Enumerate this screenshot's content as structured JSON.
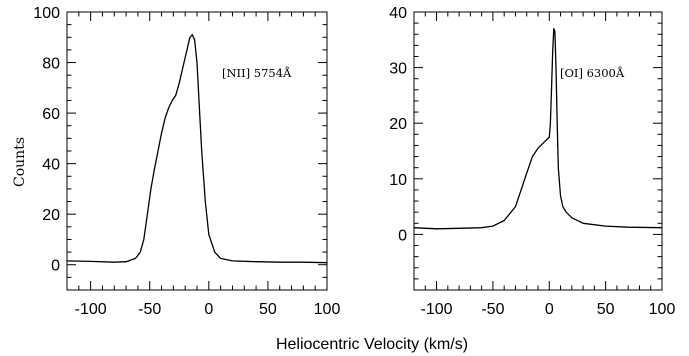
{
  "figure": {
    "xlabel": "Heliocentric Velocity (km/s)",
    "ylabel": "Counts"
  },
  "chart_data": [
    {
      "type": "line",
      "title": "",
      "annotation": "[NII] 5754Å",
      "xlabel": "Heliocentric Velocity (km/s)",
      "ylabel": "Counts",
      "xlim": [
        -120,
        100
      ],
      "ylim": [
        -10,
        100
      ],
      "x_ticks": [
        -100,
        -50,
        0,
        50,
        100
      ],
      "x_tick_labels": [
        "-100",
        "-50",
        "0",
        "50",
        "100"
      ],
      "y_ticks": [
        0,
        20,
        40,
        60,
        80,
        100
      ],
      "y_tick_labels": [
        "0",
        "20",
        "40",
        "60",
        "80",
        "100"
      ],
      "grid": false,
      "series": [
        {
          "x": [
            -120,
            -100,
            -80,
            -70,
            -62,
            -58,
            -55,
            -52,
            -49,
            -46,
            -43,
            -40,
            -37,
            -34,
            -31,
            -28,
            -25,
            -22,
            -19,
            -16,
            -14,
            -12,
            -10,
            -8,
            -6,
            -3,
            0,
            5,
            10,
            20,
            40,
            60,
            80,
            100
          ],
          "y": [
            1.5,
            1.3,
            1.0,
            1.2,
            2.5,
            5,
            10,
            20,
            30,
            38,
            45,
            52,
            58,
            62,
            65,
            67,
            72,
            78,
            84,
            90,
            91,
            89,
            80,
            62,
            45,
            25,
            12,
            5,
            2.5,
            1.5,
            1.2,
            1.0,
            1.0,
            0.8
          ]
        }
      ]
    },
    {
      "type": "line",
      "title": "",
      "annotation": "[OI] 6300Å",
      "xlabel": "Heliocentric Velocity (km/s)",
      "ylabel": "",
      "xlim": [
        -120,
        100
      ],
      "ylim": [
        -10,
        40
      ],
      "x_ticks": [
        -100,
        -50,
        0,
        50,
        100
      ],
      "x_tick_labels": [
        "-100",
        "-50",
        "0",
        "50",
        "100"
      ],
      "y_ticks": [
        0,
        10,
        20,
        30,
        40
      ],
      "y_tick_labels": [
        "0",
        "10",
        "20",
        "30",
        "40"
      ],
      "grid": false,
      "series": [
        {
          "x": [
            -120,
            -100,
            -80,
            -60,
            -50,
            -40,
            -30,
            -25,
            -20,
            -15,
            -10,
            -5,
            0,
            1,
            2,
            3,
            4,
            5,
            6,
            7,
            8,
            10,
            12,
            15,
            20,
            30,
            50,
            70,
            100
          ],
          "y": [
            1.2,
            1.0,
            1.1,
            1.2,
            1.5,
            2.5,
            5,
            8,
            11,
            14,
            15.5,
            16.5,
            17.5,
            20,
            26,
            33,
            37,
            36.5,
            30,
            20,
            12,
            7,
            5,
            4,
            3,
            2,
            1.5,
            1.3,
            1.2
          ]
        }
      ]
    }
  ]
}
